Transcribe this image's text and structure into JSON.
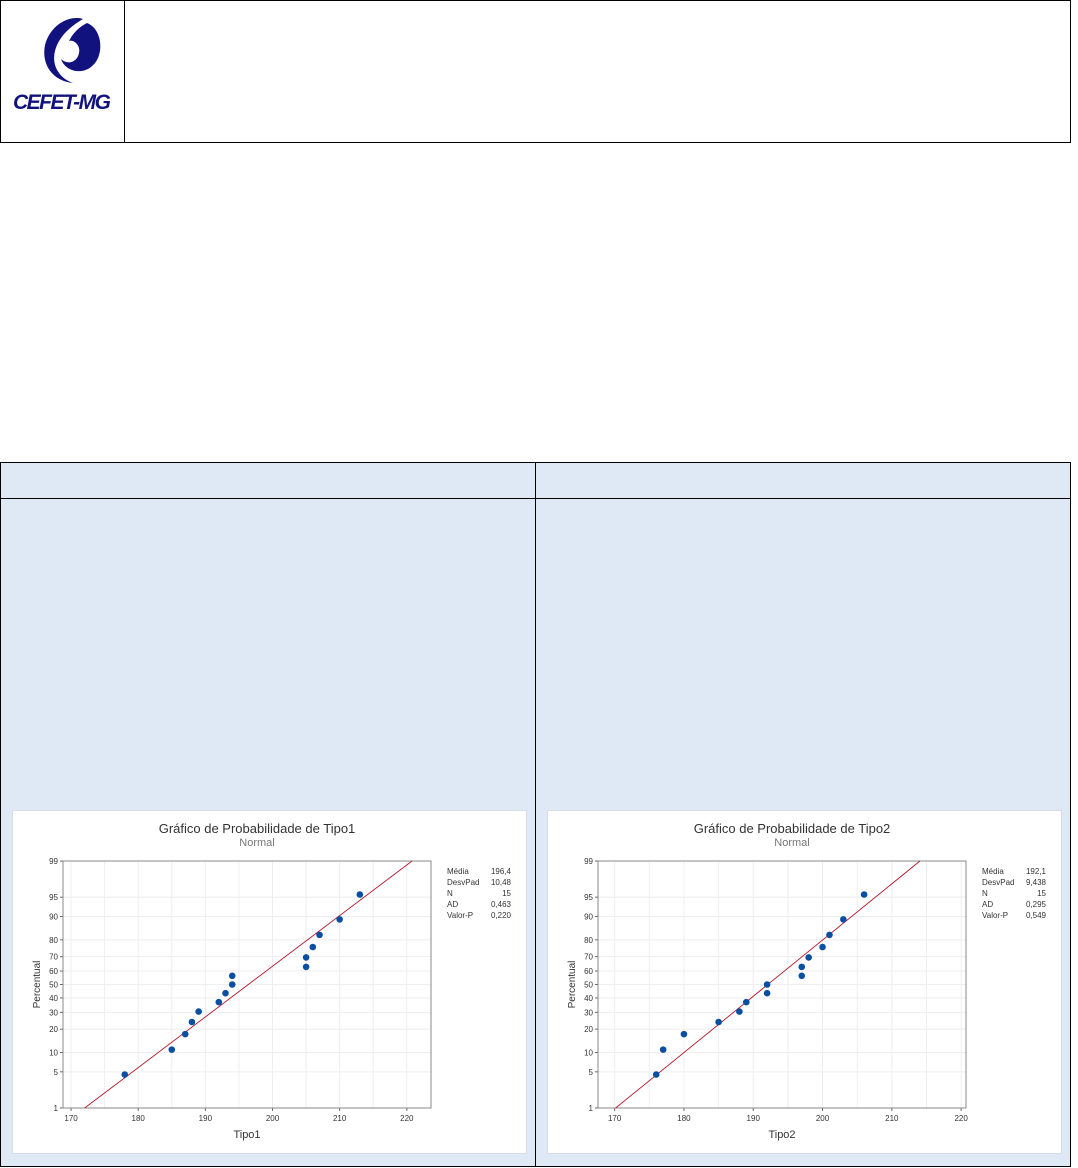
{
  "header": {
    "logo_text": "CEFET-MG"
  },
  "colors": {
    "points": "#0b4fa2",
    "fit_line": "#b2182b",
    "logo": "#12127e",
    "cell_bg": "#dfe9f5"
  },
  "chart_data": [
    {
      "type": "scatter",
      "title": "Gráfico de Probabilidade de Tipo1",
      "subtitle": "Normal",
      "xlabel": "Tipo1",
      "ylabel": "Percentual",
      "x": [
        178,
        185,
        187,
        188,
        189,
        192,
        193,
        194,
        194,
        205,
        205,
        206,
        207,
        210,
        213
      ],
      "y": [
        4.5,
        11.0,
        17.5,
        24.0,
        30.5,
        37.0,
        43.5,
        50.0,
        56.5,
        63.0,
        69.5,
        76.0,
        82.5,
        89.0,
        95.5
      ],
      "xticks": [
        170,
        180,
        190,
        200,
        210,
        220
      ],
      "yticks": [
        1,
        5,
        10,
        20,
        30,
        40,
        50,
        60,
        70,
        80,
        90,
        95,
        99
      ],
      "xlim": [
        168.8,
        223.6
      ],
      "ylim": [
        1,
        99
      ],
      "yscale": "normal-probability",
      "grid": true,
      "fit": {
        "mean": 196.4,
        "sd": 10.48
      },
      "stats": [
        [
          "Média",
          "196,4"
        ],
        [
          "DesvPad",
          "10,48"
        ],
        [
          "N",
          "15"
        ],
        [
          "AD",
          "0,463"
        ],
        [
          "Valor-P",
          "0,220"
        ]
      ]
    },
    {
      "type": "scatter",
      "title": "Gráfico de Probabilidade de Tipo2",
      "subtitle": "Normal",
      "xlabel": "Tipo2",
      "ylabel": "Percentual",
      "x": [
        176,
        177,
        180,
        185,
        188,
        189,
        192,
        192,
        197,
        197,
        198,
        200,
        201,
        203,
        206
      ],
      "y": [
        4.5,
        11.0,
        17.5,
        24.0,
        30.5,
        37.0,
        43.5,
        50.0,
        56.5,
        63.0,
        69.5,
        76.0,
        82.5,
        89.0,
        95.5
      ],
      "xticks": [
        170,
        180,
        190,
        200,
        210,
        220
      ],
      "yticks": [
        1,
        5,
        10,
        20,
        30,
        40,
        50,
        60,
        70,
        80,
        90,
        95,
        99
      ],
      "xlim": [
        167.6,
        220.7
      ],
      "ylim": [
        1,
        99
      ],
      "yscale": "normal-probability",
      "grid": true,
      "fit": {
        "mean": 192.1,
        "sd": 9.438
      },
      "stats": [
        [
          "Média",
          "192,1"
        ],
        [
          "DesvPad",
          "9,438"
        ],
        [
          "N",
          "15"
        ],
        [
          "AD",
          "0,295"
        ],
        [
          "Valor-P",
          "0,549"
        ]
      ]
    }
  ]
}
